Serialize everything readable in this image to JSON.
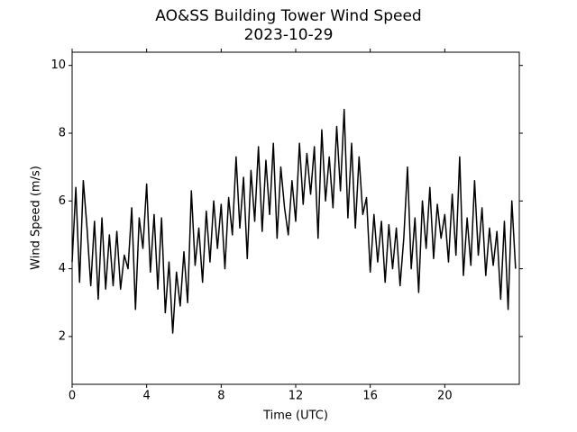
{
  "chart_data": {
    "type": "line",
    "title": "AO&SS Building Tower Wind Speed",
    "subtitle": "2023-10-29",
    "x_label": "Time (UTC)",
    "y_label": "Wind Speed (m/s)",
    "color": "#000000",
    "xlim": [
      0,
      24
    ],
    "xticks": [
      0,
      4,
      8,
      12,
      16,
      20
    ],
    "ylim": [
      0.59,
      10.39
    ],
    "yticks": [
      2,
      4,
      6,
      8,
      10
    ],
    "x": [
      0,
      0.2,
      0.4,
      0.6,
      0.8,
      1,
      1.2,
      1.4,
      1.6,
      1.8,
      2,
      2.2,
      2.4,
      2.6,
      2.8,
      3,
      3.2,
      3.4,
      3.6,
      3.8,
      4,
      4.2,
      4.4,
      4.6,
      4.8,
      5,
      5.2,
      5.4,
      5.6,
      5.8,
      6,
      6.2,
      6.4,
      6.6,
      6.8,
      7,
      7.2,
      7.4,
      7.6,
      7.8,
      8,
      8.2,
      8.4,
      8.6,
      8.8,
      9,
      9.2,
      9.4,
      9.6,
      9.8,
      10,
      10.2,
      10.4,
      10.6,
      10.8,
      11,
      11.2,
      11.4,
      11.6,
      11.8,
      12,
      12.2,
      12.4,
      12.6,
      12.8,
      13,
      13.2,
      13.4,
      13.6,
      13.8,
      14,
      14.2,
      14.4,
      14.6,
      14.8,
      15,
      15.2,
      15.4,
      15.6,
      15.8,
      16,
      16.2,
      16.4,
      16.6,
      16.8,
      17,
      17.2,
      17.4,
      17.6,
      17.8,
      18,
      18.2,
      18.4,
      18.6,
      18.8,
      19,
      19.2,
      19.4,
      19.6,
      19.8,
      20,
      20.2,
      20.4,
      20.6,
      20.8,
      21,
      21.2,
      21.4,
      21.6,
      21.8,
      22,
      22.2,
      22.4,
      22.6,
      22.8,
      23,
      23.2,
      23.4,
      23.6,
      23.8
    ],
    "values": [
      4.2,
      6.4,
      3.6,
      6.6,
      5.2,
      3.5,
      5.4,
      3.1,
      5.5,
      3.4,
      5.0,
      3.5,
      5.1,
      3.4,
      4.4,
      4.0,
      5.8,
      2.8,
      5.5,
      4.6,
      6.5,
      3.9,
      5.6,
      3.4,
      5.5,
      2.7,
      4.2,
      2.1,
      3.9,
      2.9,
      4.5,
      3.0,
      6.3,
      4.1,
      5.2,
      3.6,
      5.7,
      4.2,
      6.0,
      4.6,
      5.9,
      4.0,
      6.1,
      5.0,
      7.3,
      5.2,
      6.7,
      4.3,
      6.9,
      5.4,
      7.6,
      5.1,
      7.2,
      5.6,
      7.7,
      4.9,
      7.0,
      5.8,
      5.0,
      6.6,
      5.4,
      7.7,
      5.9,
      7.4,
      6.2,
      7.6,
      4.9,
      8.1,
      6.0,
      7.3,
      5.8,
      8.2,
      6.3,
      8.7,
      5.5,
      7.7,
      5.2,
      7.3,
      5.6,
      6.1,
      3.9,
      5.6,
      4.2,
      5.4,
      3.6,
      5.3,
      4.0,
      5.2,
      3.5,
      4.9,
      7.0,
      4.0,
      5.5,
      3.3,
      6.0,
      4.6,
      6.4,
      4.3,
      5.9,
      4.9,
      5.6,
      4.2,
      6.2,
      4.4,
      7.3,
      3.8,
      5.5,
      4.1,
      6.6,
      4.4,
      5.8,
      3.8,
      5.2,
      4.1,
      5.1,
      3.1,
      5.4,
      2.8,
      6.0,
      4.0
    ]
  }
}
